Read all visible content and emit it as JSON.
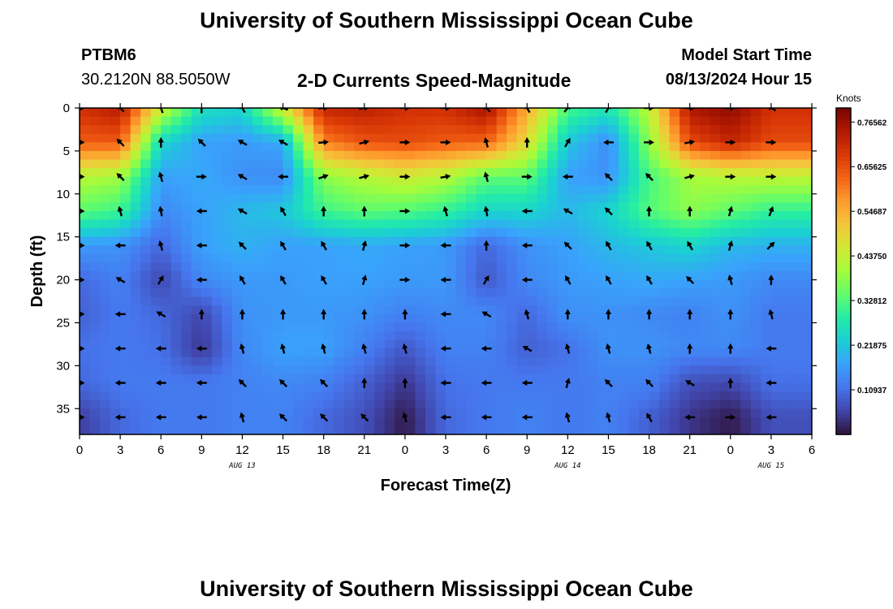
{
  "page": {
    "title": "University of Southern Mississippi Ocean Cube",
    "station_id": "PTBM6",
    "station_coords": "30.2120N  88.5050W",
    "plot_title": "2-D Currents Speed-Magnitude",
    "model_start_label": "Model Start Time",
    "model_start_value": "08/13/2024 Hour 15",
    "footer_title": "University of Southern Mississippi Ocean Cube"
  },
  "chart_data": {
    "type": "heatmap",
    "title": "2-D Currents Speed-Magnitude",
    "xlabel": "Forecast Time(Z)",
    "ylabel": "Depth (ft)",
    "x_unit": "hours from 08/13/2024 00Z",
    "xlim": [
      0,
      54
    ],
    "ylim": [
      38,
      0
    ],
    "x_ticks": [
      0,
      3,
      6,
      9,
      12,
      15,
      18,
      21,
      24,
      27,
      30,
      33,
      36,
      39,
      42,
      45,
      48,
      51,
      54
    ],
    "x_tick_labels": [
      "0",
      "3",
      "6",
      "9",
      "12",
      "15",
      "18",
      "21",
      "0",
      "3",
      "6",
      "9",
      "12",
      "15",
      "18",
      "21",
      "0",
      "3",
      "6"
    ],
    "y_ticks": [
      0,
      5,
      10,
      15,
      20,
      25,
      30,
      35
    ],
    "y_tick_labels": [
      "0",
      "5",
      "10",
      "15",
      "20",
      "25",
      "30",
      "35"
    ],
    "date_labels": [
      {
        "x": 12,
        "text": "AUG 13"
      },
      {
        "x": 36,
        "text": "AUG 14"
      },
      {
        "x": 51,
        "text": "AUG 15"
      }
    ],
    "colorbar": {
      "label": "Knots",
      "min": 0,
      "max": 0.8,
      "tick_values": [
        0.76562,
        0.65625,
        0.54687,
        0.4375,
        0.32812,
        0.21875,
        0.10937
      ],
      "tick_labels": [
        "0.76562",
        "0.65625",
        "0.54687",
        "0.43750",
        "0.32812",
        "0.21875",
        "0.10937"
      ],
      "colormap": [
        "#30123b",
        "#4145ab",
        "#4675ed",
        "#39a2fc",
        "#1bcfd4",
        "#24eca6",
        "#61fc6c",
        "#a4fc3b",
        "#d1e834",
        "#f3c63a",
        "#fe9b2d",
        "#f36315",
        "#d93806",
        "#b11901",
        "#7a0403"
      ]
    },
    "vector_depths": [
      0,
      4,
      8,
      12,
      16,
      20,
      24,
      28,
      32,
      36
    ],
    "vector_times": [
      0,
      3,
      6,
      9,
      12,
      15,
      18,
      21,
      24,
      27,
      30,
      33,
      36,
      39,
      42,
      45,
      48,
      51
    ],
    "speed_scale": "knots",
    "speed_grid": [
      [
        0.7,
        0.74,
        0.45,
        0.26,
        0.24,
        0.46,
        0.72,
        0.73,
        0.7,
        0.7,
        0.76,
        0.55,
        0.32,
        0.27,
        0.43,
        0.75,
        0.78,
        0.7
      ],
      [
        0.64,
        0.64,
        0.24,
        0.17,
        0.16,
        0.18,
        0.6,
        0.65,
        0.66,
        0.64,
        0.63,
        0.48,
        0.22,
        0.14,
        0.38,
        0.66,
        0.72,
        0.66
      ],
      [
        0.42,
        0.4,
        0.17,
        0.18,
        0.15,
        0.14,
        0.38,
        0.42,
        0.45,
        0.42,
        0.34,
        0.34,
        0.17,
        0.15,
        0.32,
        0.4,
        0.42,
        0.43
      ],
      [
        0.34,
        0.31,
        0.14,
        0.17,
        0.2,
        0.22,
        0.31,
        0.34,
        0.33,
        0.3,
        0.24,
        0.24,
        0.2,
        0.24,
        0.33,
        0.38,
        0.34,
        0.3
      ],
      [
        0.16,
        0.15,
        0.1,
        0.17,
        0.19,
        0.17,
        0.17,
        0.18,
        0.17,
        0.16,
        0.1,
        0.15,
        0.17,
        0.2,
        0.22,
        0.24,
        0.2,
        0.19
      ],
      [
        0.1,
        0.13,
        0.06,
        0.14,
        0.16,
        0.16,
        0.17,
        0.17,
        0.16,
        0.16,
        0.08,
        0.14,
        0.16,
        0.17,
        0.18,
        0.17,
        0.16,
        0.14
      ],
      [
        0.09,
        0.12,
        0.1,
        0.06,
        0.15,
        0.16,
        0.16,
        0.15,
        0.13,
        0.14,
        0.14,
        0.1,
        0.15,
        0.15,
        0.14,
        0.13,
        0.15,
        0.12
      ],
      [
        0.11,
        0.12,
        0.11,
        0.04,
        0.14,
        0.17,
        0.17,
        0.13,
        0.08,
        0.13,
        0.13,
        0.09,
        0.11,
        0.15,
        0.15,
        0.14,
        0.14,
        0.12
      ],
      [
        0.1,
        0.12,
        0.12,
        0.12,
        0.13,
        0.14,
        0.13,
        0.09,
        0.04,
        0.11,
        0.12,
        0.12,
        0.12,
        0.13,
        0.13,
        0.07,
        0.06,
        0.11
      ],
      [
        0.05,
        0.1,
        0.12,
        0.12,
        0.13,
        0.13,
        0.1,
        0.07,
        0.01,
        0.1,
        0.12,
        0.13,
        0.12,
        0.13,
        0.09,
        0.04,
        0.01,
        0.07
      ]
    ],
    "direction_grid_deg": [
      [
        90,
        315,
        340,
        0,
        330,
        290,
        85,
        80,
        90,
        90,
        315,
        330,
        40,
        30,
        90,
        90,
        90,
        300
      ],
      [
        90,
        315,
        0,
        315,
        300,
        300,
        85,
        75,
        90,
        90,
        345,
        0,
        30,
        270,
        90,
        80,
        90,
        90
      ],
      [
        90,
        315,
        345,
        90,
        300,
        270,
        70,
        75,
        90,
        80,
        345,
        90,
        270,
        315,
        315,
        75,
        90,
        90
      ],
      [
        90,
        345,
        350,
        270,
        300,
        330,
        0,
        0,
        90,
        345,
        350,
        270,
        300,
        315,
        0,
        0,
        15,
        20
      ],
      [
        90,
        270,
        345,
        270,
        315,
        330,
        330,
        15,
        90,
        270,
        0,
        270,
        315,
        330,
        330,
        330,
        15,
        45
      ],
      [
        90,
        300,
        30,
        270,
        330,
        330,
        330,
        15,
        90,
        270,
        30,
        270,
        330,
        330,
        330,
        315,
        345,
        0
      ],
      [
        90,
        270,
        300,
        0,
        0,
        0,
        0,
        0,
        0,
        270,
        300,
        345,
        0,
        0,
        0,
        0,
        0,
        345
      ],
      [
        90,
        270,
        270,
        270,
        345,
        345,
        345,
        345,
        345,
        270,
        270,
        300,
        345,
        345,
        345,
        0,
        0,
        270
      ],
      [
        90,
        270,
        270,
        270,
        315,
        315,
        315,
        0,
        0,
        270,
        270,
        270,
        15,
        315,
        315,
        300,
        0,
        270
      ],
      [
        90,
        270,
        270,
        270,
        345,
        315,
        315,
        315,
        345,
        270,
        270,
        270,
        345,
        345,
        330,
        270,
        90,
        270
      ]
    ]
  }
}
